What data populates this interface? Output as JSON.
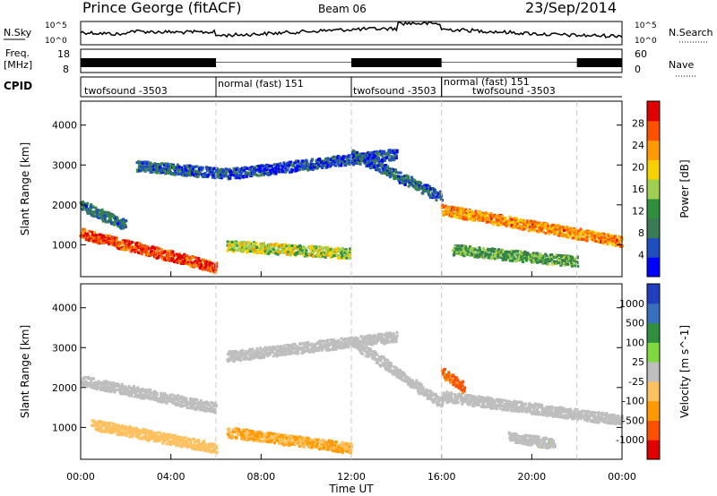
{
  "header": {
    "title": "Prince George (fitACF)",
    "beam": "Beam 06",
    "date": "23/Sep/2014"
  },
  "noise_panel": {
    "left_label": "N.Sky",
    "right_label": "N.Search",
    "left_ticks": [
      "10^5",
      "10^0"
    ],
    "right_ticks": [
      "10^5",
      "10^0"
    ]
  },
  "freq_panel": {
    "left_label_1": "Freq.",
    "left_label_2": "[MHz]",
    "right_label": "Nave",
    "left_ticks": [
      "18",
      "8"
    ],
    "right_ticks": [
      "60",
      "0"
    ]
  },
  "cpid": {
    "label": "CPID",
    "segments": [
      {
        "name": "twofsound -3503",
        "start_h": 0,
        "end_h": 6
      },
      {
        "name": "normal (fast) 151",
        "start_h": 6,
        "end_h": 12
      },
      {
        "name": "twofsound -3503",
        "start_h": 12,
        "end_h": 16
      },
      {
        "name": "normal (fast) 151",
        "start_h": 16,
        "end_h": 22
      },
      {
        "name": "twofsound -3503",
        "start_h": 16,
        "end_h": 22
      }
    ]
  },
  "chart_data": [
    {
      "type": "heatmap",
      "panel": "power",
      "ylabel": "Slant Range [km]",
      "yticks": [
        "1000",
        "2000",
        "3000",
        "4000"
      ],
      "ylim": [
        200,
        4600
      ],
      "colorbar_label": "Power [dB]",
      "colorbar_ticks": [
        "28",
        "24",
        "20",
        "16",
        "12",
        "8",
        "4"
      ],
      "colorbar_range": [
        0,
        30
      ],
      "colors": [
        "#0000ff",
        "#1f4fbf",
        "#3a7a55",
        "#2f8f3f",
        "#9fcf4f",
        "#f7d000",
        "#ff9a00",
        "#ff5000",
        "#e00000"
      ],
      "echo_bands": [
        {
          "start_h": 0.0,
          "end_h": 6.0,
          "start_km": 1300,
          "end_km": 450,
          "level": 26
        },
        {
          "start_h": 0.0,
          "end_h": 2.0,
          "start_km": 2000,
          "end_km": 1500,
          "level": 8
        },
        {
          "start_h": 2.5,
          "end_h": 6.5,
          "start_km": 3000,
          "end_km": 2800,
          "level": 6
        },
        {
          "start_h": 6.5,
          "end_h": 14.0,
          "start_km": 2800,
          "end_km": 3300,
          "level": 5
        },
        {
          "start_h": 6.5,
          "end_h": 12.0,
          "start_km": 1000,
          "end_km": 800,
          "level": 16
        },
        {
          "start_h": 12.0,
          "end_h": 16.0,
          "start_km": 3300,
          "end_km": 2200,
          "level": 6
        },
        {
          "start_h": 16.0,
          "end_h": 24.0,
          "start_km": 1900,
          "end_km": 1100,
          "level": 22
        },
        {
          "start_h": 16.5,
          "end_h": 22.0,
          "start_km": 900,
          "end_km": 600,
          "level": 12
        }
      ]
    },
    {
      "type": "heatmap",
      "panel": "velocity",
      "ylabel": "Slant Range [km]",
      "yticks": [
        "1000",
        "2000",
        "3000",
        "4000"
      ],
      "ylim": [
        200,
        4600
      ],
      "colorbar_label": "Velocity [m s^-1]",
      "colorbar_ticks": [
        "1000",
        "500",
        "100",
        "25",
        "-25",
        "-100",
        "-500",
        "-1000"
      ],
      "colorbar_range": [
        -1200,
        1200
      ],
      "colors": [
        "#e00000",
        "#ff5000",
        "#ff9a00",
        "#ffc060",
        "#bebebe",
        "#7fd93f",
        "#2f8f3f",
        "#3a6fbf",
        "#1f3fbf"
      ],
      "echo_bands": [
        {
          "start_h": 0.0,
          "end_h": 6.0,
          "start_km": 2200,
          "end_km": 1500,
          "velocity": 0
        },
        {
          "start_h": 0.5,
          "end_h": 6.0,
          "start_km": 1100,
          "end_km": 500,
          "velocity": -300
        },
        {
          "start_h": 6.5,
          "end_h": 14.0,
          "start_km": 2800,
          "end_km": 3300,
          "velocity": 0
        },
        {
          "start_h": 6.5,
          "end_h": 12.0,
          "start_km": 900,
          "end_km": 500,
          "velocity": -400
        },
        {
          "start_h": 12.0,
          "end_h": 16.0,
          "start_km": 3200,
          "end_km": 1600,
          "velocity": 0
        },
        {
          "start_h": 16.0,
          "end_h": 24.0,
          "start_km": 1800,
          "end_km": 1200,
          "velocity": 0
        },
        {
          "start_h": 16.0,
          "end_h": 17.0,
          "start_km": 2400,
          "end_km": 2000,
          "velocity": -700
        },
        {
          "start_h": 19.0,
          "end_h": 21.0,
          "start_km": 800,
          "end_km": 600,
          "velocity": 60
        }
      ]
    }
  ],
  "x_axis": {
    "label": "Time UT",
    "ticks": [
      "00:00",
      "04:00",
      "08:00",
      "12:00",
      "16:00",
      "20:00",
      "00:00"
    ],
    "range_h": [
      0,
      24
    ]
  }
}
